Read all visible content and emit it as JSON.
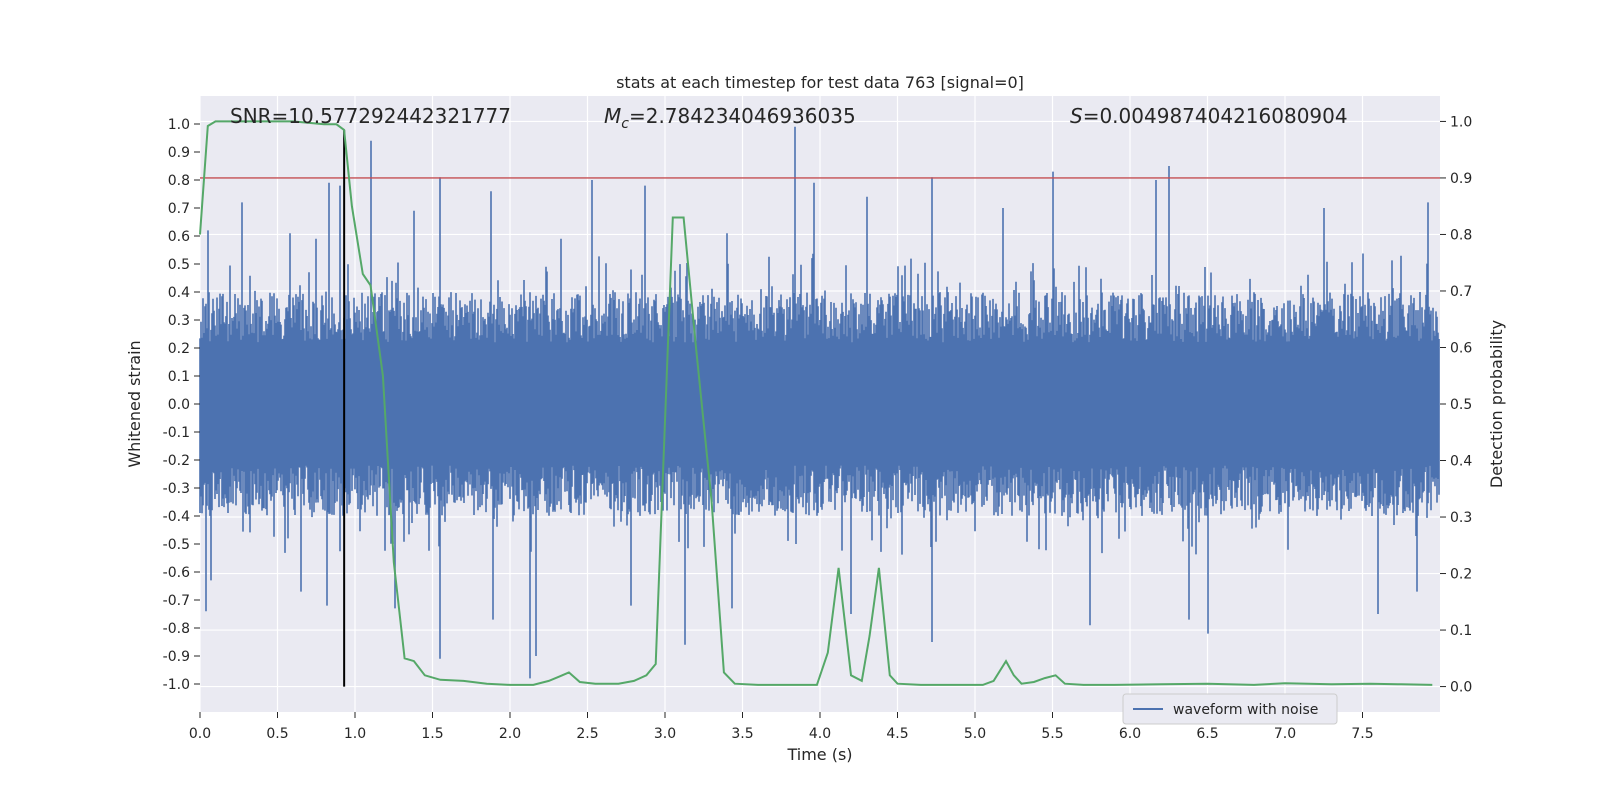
{
  "chart_data": {
    "type": "line",
    "title": "stats at each timestep for test data 763 [signal=0]",
    "xlabel": "Time (s)",
    "ylabel": "Whitened strain",
    "y2label": "Detection probability",
    "xlim": [
      0,
      8
    ],
    "ylim": [
      -1.1,
      1.1
    ],
    "y2lim": [
      -0.045,
      1.045
    ],
    "x_ticks": [
      "0.0",
      "0.5",
      "1.0",
      "1.5",
      "2.0",
      "2.5",
      "3.0",
      "3.5",
      "4.0",
      "4.5",
      "5.0",
      "5.5",
      "6.0",
      "6.5",
      "7.0",
      "7.5"
    ],
    "y_ticks": [
      "1.0",
      "0.9",
      "0.8",
      "0.7",
      "0.6",
      "0.5",
      "0.4",
      "0.3",
      "0.2",
      "0.1",
      "0.0",
      "-0.1",
      "-0.2",
      "-0.3",
      "-0.4",
      "-0.5",
      "-0.6",
      "-0.7",
      "-0.8",
      "-0.9",
      "-1.0"
    ],
    "y2_ticks": [
      "1.0",
      "0.9",
      "0.8",
      "0.7",
      "0.6",
      "0.5",
      "0.4",
      "0.3",
      "0.2",
      "0.1",
      "0.0"
    ],
    "grid": true,
    "legend_position": "bottom-right",
    "colors": {
      "background": "#eaeaf2",
      "waveform": "#4c72b0",
      "probability": "#55a868",
      "threshold": "#c44e52",
      "marker": "#000000",
      "grid": "#ffffff"
    },
    "annotations": {
      "snr": "SNR=10.577292442321777",
      "mc_symbol": "M",
      "mc_subscript": "c",
      "mc_value": "=2.784234046936035",
      "s_symbol": "S",
      "s_value": "=0.004987404216080904"
    },
    "threshold_y2": 0.9,
    "marker_x": 0.93,
    "series": [
      {
        "name": "waveform with noise",
        "kind": "waveform",
        "y_range_typical": [
          -0.4,
          0.4
        ],
        "peaks": [
          [
            0.05,
            0.62
          ],
          [
            0.27,
            0.72
          ],
          [
            0.58,
            0.61
          ],
          [
            0.75,
            0.59
          ],
          [
            0.83,
            0.79
          ],
          [
            0.9,
            0.78
          ],
          [
            1.1,
            0.94
          ],
          [
            1.38,
            0.69
          ],
          [
            1.55,
            0.81
          ],
          [
            1.88,
            0.76
          ],
          [
            2.33,
            0.59
          ],
          [
            2.53,
            0.8
          ],
          [
            2.87,
            0.78
          ],
          [
            3.4,
            0.61
          ],
          [
            3.84,
            0.99
          ],
          [
            3.96,
            0.79
          ],
          [
            4.3,
            0.74
          ],
          [
            4.72,
            0.81
          ],
          [
            5.18,
            0.7
          ],
          [
            5.5,
            0.83
          ],
          [
            6.17,
            0.8
          ],
          [
            6.25,
            0.85
          ],
          [
            7.25,
            0.7
          ],
          [
            7.92,
            0.72
          ]
        ],
        "troughs": [
          [
            0.04,
            -0.74
          ],
          [
            0.07,
            -0.63
          ],
          [
            0.65,
            -0.67
          ],
          [
            0.82,
            -0.72
          ],
          [
            1.26,
            -0.73
          ],
          [
            1.55,
            -0.91
          ],
          [
            1.89,
            -0.77
          ],
          [
            2.13,
            -0.98
          ],
          [
            2.17,
            -0.9
          ],
          [
            2.78,
            -0.72
          ],
          [
            3.13,
            -0.86
          ],
          [
            3.43,
            -0.73
          ],
          [
            4.2,
            -0.75
          ],
          [
            4.72,
            -0.85
          ],
          [
            5.74,
            -0.79
          ],
          [
            6.38,
            -0.77
          ],
          [
            6.5,
            -0.82
          ],
          [
            7.6,
            -0.75
          ],
          [
            7.85,
            -0.67
          ]
        ]
      },
      {
        "name": "",
        "kind": "detection_probability",
        "x": [
          0.0,
          0.05,
          0.1,
          0.2,
          0.4,
          0.6,
          0.8,
          0.88,
          0.93,
          0.98,
          1.05,
          1.1,
          1.18,
          1.25,
          1.32,
          1.38,
          1.45,
          1.55,
          1.7,
          1.85,
          2.0,
          2.15,
          2.25,
          2.32,
          2.38,
          2.45,
          2.55,
          2.7,
          2.8,
          2.88,
          2.94,
          3.05,
          3.12,
          3.2,
          3.3,
          3.38,
          3.45,
          3.6,
          3.8,
          3.98,
          4.05,
          4.12,
          4.2,
          4.27,
          4.32,
          4.38,
          4.45,
          4.5,
          4.65,
          4.85,
          5.05,
          5.12,
          5.2,
          5.25,
          5.3,
          5.38,
          5.45,
          5.52,
          5.58,
          5.7,
          5.9,
          6.2,
          6.5,
          6.8,
          7.0,
          7.3,
          7.55,
          7.75,
          7.95
        ],
        "y": [
          0.8,
          0.992,
          1.0,
          1.0,
          1.0,
          1.0,
          0.995,
          0.995,
          0.985,
          0.85,
          0.73,
          0.71,
          0.55,
          0.22,
          0.05,
          0.045,
          0.02,
          0.012,
          0.01,
          0.005,
          0.003,
          0.003,
          0.01,
          0.018,
          0.025,
          0.008,
          0.005,
          0.005,
          0.01,
          0.02,
          0.04,
          0.83,
          0.83,
          0.6,
          0.33,
          0.025,
          0.005,
          0.003,
          0.003,
          0.003,
          0.06,
          0.21,
          0.02,
          0.01,
          0.09,
          0.21,
          0.02,
          0.005,
          0.003,
          0.003,
          0.003,
          0.01,
          0.045,
          0.02,
          0.005,
          0.008,
          0.015,
          0.02,
          0.005,
          0.003,
          0.003,
          0.004,
          0.005,
          0.003,
          0.006,
          0.004,
          0.005,
          0.004,
          0.003
        ]
      }
    ]
  }
}
